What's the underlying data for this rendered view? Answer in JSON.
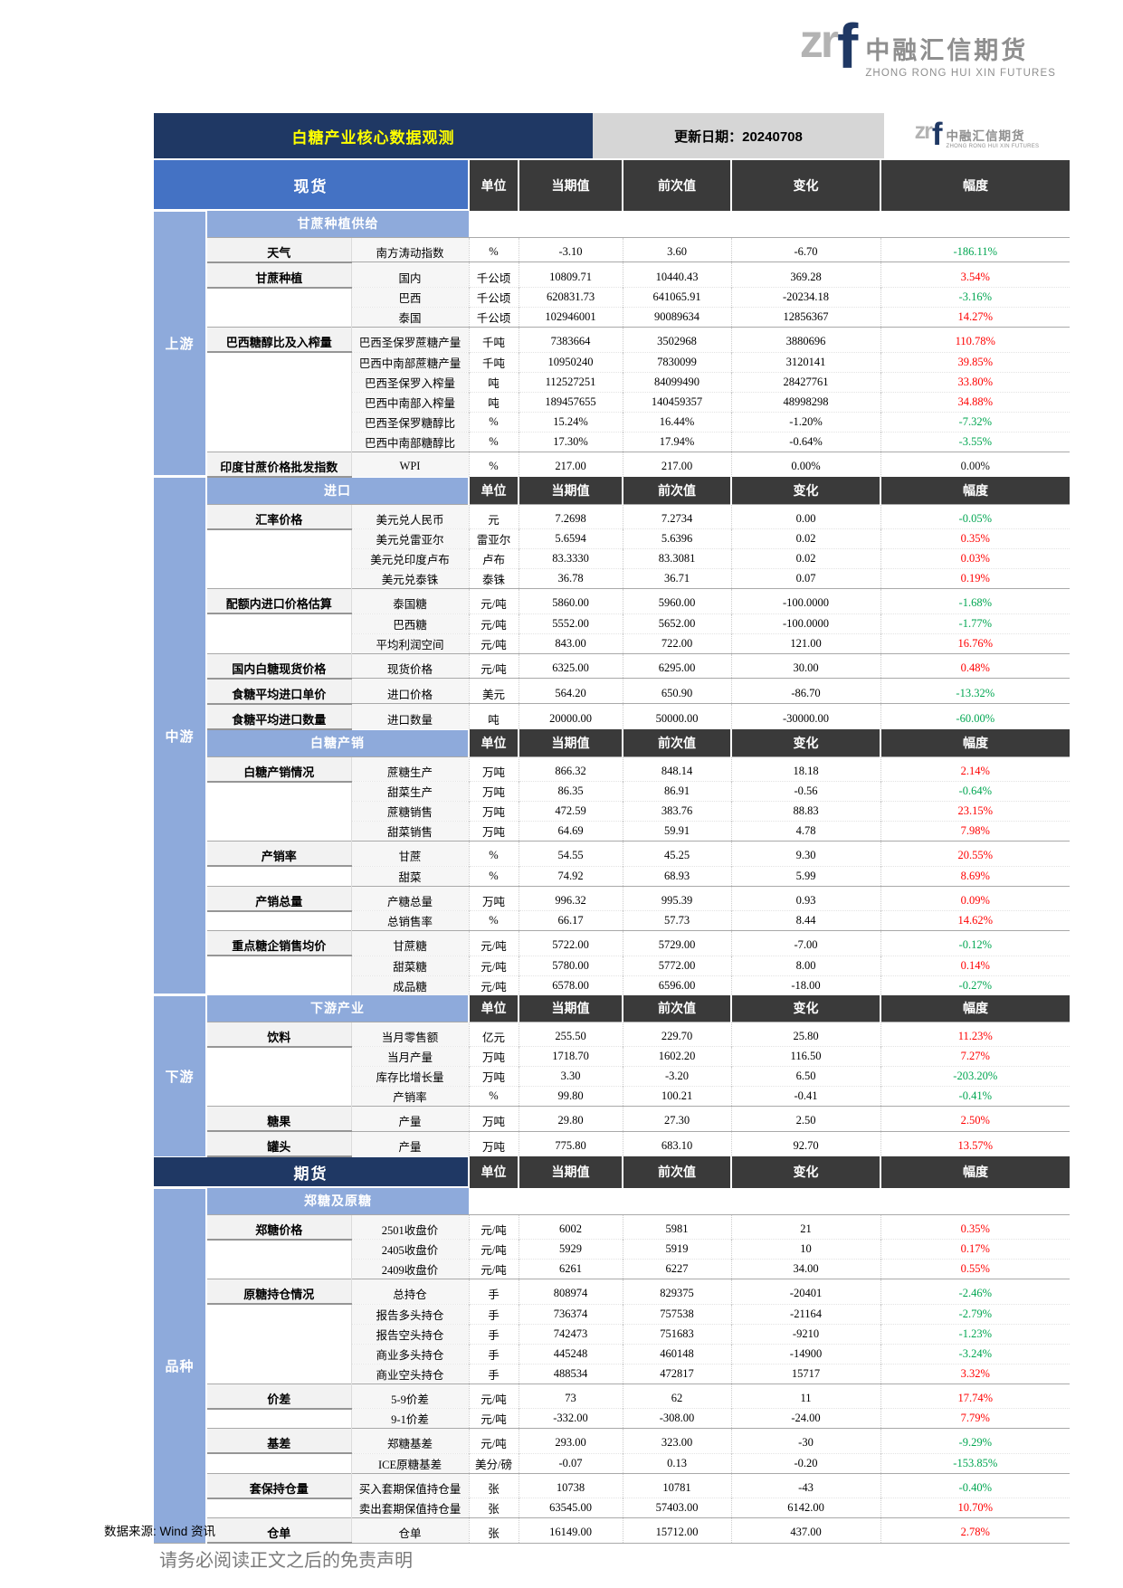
{
  "page": {
    "title": "白糖产业核心数据观测",
    "update_date": "更新日期：20240708",
    "footer_source": "数据来源: Wind 资讯",
    "footer_disclaimer": "请务必阅读正文之后的免责声明"
  },
  "logo": {
    "z": "z",
    "r": "r",
    "f": "f",
    "cn": "中融汇信期货",
    "en": "ZHONG RONG HUI XIN FUTURES"
  },
  "columns": [
    "单位",
    "当期值",
    "前次值",
    "变化",
    "幅度"
  ],
  "colors": {
    "up": "#FF0000",
    "down": "#00A651",
    "flat": "#111111",
    "navy": "#1F3864",
    "blue": "#4472C4",
    "lightblue": "#8EAADB",
    "header_dark": "#3A3A3A"
  },
  "segments": [
    {
      "kind": "main",
      "style": "blue",
      "label": "现货"
    },
    {
      "kind": "group",
      "label": "上游",
      "blocks": [
        {
          "t": "sub",
          "label": "甘蔗种植供给"
        },
        {
          "t": "cat",
          "label": "天气",
          "rows": [
            [
              "南方涛动指数",
              "%",
              "-3.10",
              "3.60",
              "-6.70",
              "-186.11%",
              "down"
            ]
          ]
        },
        {
          "t": "cat",
          "label": "甘蔗种植",
          "rows": [
            [
              "国内",
              "千公顷",
              "10809.71",
              "10440.43",
              "369.28",
              "3.54%",
              "up"
            ],
            [
              "巴西",
              "千公顷",
              "620831.73",
              "641065.91",
              "-20234.18",
              "-3.16%",
              "down"
            ],
            [
              "泰国",
              "千公顷",
              "102946001",
              "90089634",
              "12856367",
              "14.27%",
              "up"
            ]
          ]
        },
        {
          "t": "cat",
          "label": "巴西糖醇比及入榨量",
          "rows": [
            [
              "巴西圣保罗蔗糖产量",
              "千吨",
              "7383664",
              "3502968",
              "3880696",
              "110.78%",
              "up"
            ],
            [
              "巴西中南部蔗糖产量",
              "千吨",
              "10950240",
              "7830099",
              "3120141",
              "39.85%",
              "up"
            ],
            [
              "巴西圣保罗入榨量",
              "吨",
              "112527251",
              "84099490",
              "28427761",
              "33.80%",
              "up"
            ],
            [
              "巴西中南部入榨量",
              "吨",
              "189457655",
              "140459357",
              "48998298",
              "34.88%",
              "up"
            ],
            [
              "巴西圣保罗糖醇比",
              "%",
              "15.24%",
              "16.44%",
              "-1.20%",
              "-7.32%",
              "down"
            ],
            [
              "巴西中南部糖醇比",
              "%",
              "17.30%",
              "17.94%",
              "-0.64%",
              "-3.55%",
              "down"
            ]
          ]
        },
        {
          "t": "cat",
          "label": "印度甘蔗价格批发指数",
          "rows": [
            [
              "WPI",
              "%",
              "217.00",
              "217.00",
              "0.00%",
              "0.00%",
              "flat"
            ]
          ]
        }
      ]
    },
    {
      "kind": "group",
      "label": "中游",
      "blocks": [
        {
          "t": "sec",
          "label": "进口"
        },
        {
          "t": "cat",
          "label": "汇率价格",
          "rows": [
            [
              "美元兑人民币",
              "元",
              "7.2698",
              "7.2734",
              "0.00",
              "-0.05%",
              "down"
            ],
            [
              "美元兑雷亚尔",
              "雷亚尔",
              "5.6594",
              "5.6396",
              "0.02",
              "0.35%",
              "up"
            ],
            [
              "美元兑印度卢布",
              "卢布",
              "83.3330",
              "83.3081",
              "0.02",
              "0.03%",
              "up"
            ],
            [
              "美元兑泰铢",
              "泰铢",
              "36.78",
              "36.71",
              "0.07",
              "0.19%",
              "up"
            ]
          ]
        },
        {
          "t": "cat",
          "label": "配额内进口价格估算",
          "rows": [
            [
              "泰国糖",
              "元/吨",
              "5860.00",
              "5960.00",
              "-100.0000",
              "-1.68%",
              "down"
            ],
            [
              "巴西糖",
              "元/吨",
              "5552.00",
              "5652.00",
              "-100.0000",
              "-1.77%",
              "down"
            ],
            [
              "平均利润空间",
              "元/吨",
              "843.00",
              "722.00",
              "121.00",
              "16.76%",
              "up"
            ]
          ]
        },
        {
          "t": "cat",
          "label": "国内白糖现货价格",
          "rows": [
            [
              "现货价格",
              "元/吨",
              "6325.00",
              "6295.00",
              "30.00",
              "0.48%",
              "up"
            ]
          ]
        },
        {
          "t": "cat",
          "label": "食糖平均进口单价",
          "rows": [
            [
              "进口价格",
              "美元",
              "564.20",
              "650.90",
              "-86.70",
              "-13.32%",
              "down"
            ]
          ]
        },
        {
          "t": "cat",
          "label": "食糖平均进口数量",
          "rows": [
            [
              "进口数量",
              "吨",
              "20000.00",
              "50000.00",
              "-30000.00",
              "-60.00%",
              "down"
            ]
          ]
        },
        {
          "t": "sec",
          "label": "白糖产销"
        },
        {
          "t": "cat",
          "label": "白糖产销情况",
          "rows": [
            [
              "蔗糖生产",
              "万吨",
              "866.32",
              "848.14",
              "18.18",
              "2.14%",
              "up"
            ],
            [
              "甜菜生产",
              "万吨",
              "86.35",
              "86.91",
              "-0.56",
              "-0.64%",
              "down"
            ],
            [
              "蔗糖销售",
              "万吨",
              "472.59",
              "383.76",
              "88.83",
              "23.15%",
              "up"
            ],
            [
              "甜菜销售",
              "万吨",
              "64.69",
              "59.91",
              "4.78",
              "7.98%",
              "up"
            ]
          ]
        },
        {
          "t": "cat",
          "label": "产销率",
          "rows": [
            [
              "甘蔗",
              "%",
              "54.55",
              "45.25",
              "9.30",
              "20.55%",
              "up"
            ],
            [
              "甜菜",
              "%",
              "74.92",
              "68.93",
              "5.99",
              "8.69%",
              "up"
            ]
          ]
        },
        {
          "t": "cat",
          "label": "产销总量",
          "rows": [
            [
              "产糖总量",
              "万吨",
              "996.32",
              "995.39",
              "0.93",
              "0.09%",
              "up"
            ],
            [
              "总销售率",
              "%",
              "66.17",
              "57.73",
              "8.44",
              "14.62%",
              "up"
            ]
          ]
        },
        {
          "t": "cat",
          "label": "重点糖企销售均价",
          "rows": [
            [
              "甘蔗糖",
              "元/吨",
              "5722.00",
              "5729.00",
              "-7.00",
              "-0.12%",
              "down"
            ],
            [
              "甜菜糖",
              "元/吨",
              "5780.00",
              "5772.00",
              "8.00",
              "0.14%",
              "up"
            ],
            [
              "成品糖",
              "元/吨",
              "6578.00",
              "6596.00",
              "-18.00",
              "-0.27%",
              "down"
            ]
          ]
        }
      ]
    },
    {
      "kind": "group",
      "label": "下游",
      "blocks": [
        {
          "t": "sec",
          "label": "下游产业"
        },
        {
          "t": "cat",
          "label": "饮料",
          "rows": [
            [
              "当月零售额",
              "亿元",
              "255.50",
              "229.70",
              "25.80",
              "11.23%",
              "up"
            ],
            [
              "当月产量",
              "万吨",
              "1718.70",
              "1602.20",
              "116.50",
              "7.27%",
              "up"
            ],
            [
              "库存比增长量",
              "万吨",
              "3.30",
              "-3.20",
              "6.50",
              "-203.20%",
              "down"
            ],
            [
              "产销率",
              "%",
              "99.80",
              "100.21",
              "-0.41",
              "-0.41%",
              "down"
            ]
          ]
        },
        {
          "t": "cat",
          "label": "糖果",
          "rows": [
            [
              "产量",
              "万吨",
              "29.80",
              "27.30",
              "2.50",
              "2.50%",
              "up"
            ]
          ]
        },
        {
          "t": "cat",
          "label": "罐头",
          "rows": [
            [
              "产量",
              "万吨",
              "775.80",
              "683.10",
              "92.70",
              "13.57%",
              "up"
            ]
          ]
        }
      ]
    },
    {
      "kind": "main",
      "style": "navy",
      "label": "期货"
    },
    {
      "kind": "group",
      "label": "品种",
      "blocks": [
        {
          "t": "sub",
          "label": "郑糖及原糖"
        },
        {
          "t": "cat",
          "label": "郑糖价格",
          "rows": [
            [
              "2501收盘价",
              "元/吨",
              "6002",
              "5981",
              "21",
              "0.35%",
              "up"
            ],
            [
              "2405收盘价",
              "元/吨",
              "5929",
              "5919",
              "10",
              "0.17%",
              "up"
            ],
            [
              "2409收盘价",
              "元/吨",
              "6261",
              "6227",
              "34.00",
              "0.55%",
              "up"
            ]
          ]
        },
        {
          "t": "cat",
          "label": "原糖持仓情况",
          "rows": [
            [
              "总持仓",
              "手",
              "808974",
              "829375",
              "-20401",
              "-2.46%",
              "down"
            ],
            [
              "报告多头持仓",
              "手",
              "736374",
              "757538",
              "-21164",
              "-2.79%",
              "down"
            ],
            [
              "报告空头持仓",
              "手",
              "742473",
              "751683",
              "-9210",
              "-1.23%",
              "down"
            ],
            [
              "商业多头持仓",
              "手",
              "445248",
              "460148",
              "-14900",
              "-3.24%",
              "down"
            ],
            [
              "商业空头持仓",
              "手",
              "488534",
              "472817",
              "15717",
              "3.32%",
              "up"
            ]
          ]
        },
        {
          "t": "cat",
          "label": "价差",
          "rows": [
            [
              "5-9价差",
              "元/吨",
              "73",
              "62",
              "11",
              "17.74%",
              "up"
            ],
            [
              "9-1价差",
              "元/吨",
              "-332.00",
              "-308.00",
              "-24.00",
              "7.79%",
              "up"
            ]
          ]
        },
        {
          "t": "cat",
          "label": "基差",
          "rows": [
            [
              "郑糖基差",
              "元/吨",
              "293.00",
              "323.00",
              "-30",
              "-9.29%",
              "down"
            ],
            [
              "ICE原糖基差",
              "美分/磅",
              "-0.07",
              "0.13",
              "-0.20",
              "-153.85%",
              "down"
            ]
          ]
        },
        {
          "t": "cat",
          "label": "套保持仓量",
          "rows": [
            [
              "买入套期保值持仓量",
              "张",
              "10738",
              "10781",
              "-43",
              "-0.40%",
              "down"
            ],
            [
              "卖出套期保值持仓量",
              "张",
              "63545.00",
              "57403.00",
              "6142.00",
              "10.70%",
              "up"
            ]
          ]
        },
        {
          "t": "cat",
          "label": "仓单",
          "rows": [
            [
              "仓单",
              "张",
              "16149.00",
              "15712.00",
              "437.00",
              "2.78%",
              "up"
            ]
          ]
        }
      ]
    }
  ]
}
